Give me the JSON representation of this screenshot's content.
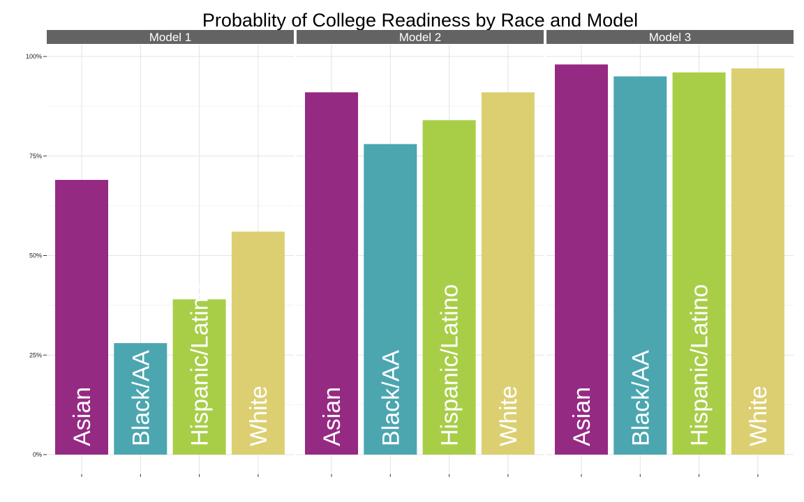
{
  "chart_data": {
    "type": "bar",
    "title": "Probablity of College Readiness by Race and Model",
    "xlabel": "",
    "ylabel": "",
    "ylim": [
      0,
      1
    ],
    "y_ticks": [
      0,
      0.25,
      0.5,
      0.75,
      1.0
    ],
    "y_tick_labels": [
      "0%",
      "25%",
      "50%",
      "75%",
      "100%"
    ],
    "grid": true,
    "facets": [
      {
        "name": "Model 1",
        "categories": [
          "Asian",
          "Black/AA",
          "Hispanic/Latino",
          "White"
        ],
        "values": [
          0.69,
          0.28,
          0.39,
          0.56
        ]
      },
      {
        "name": "Model 2",
        "categories": [
          "Asian",
          "Black/AA",
          "Hispanic/Latino",
          "White"
        ],
        "values": [
          0.91,
          0.78,
          0.84,
          0.91
        ]
      },
      {
        "name": "Model 3",
        "categories": [
          "Asian",
          "Black/AA",
          "Hispanic/Latino",
          "White"
        ],
        "values": [
          0.98,
          0.95,
          0.96,
          0.97
        ]
      }
    ],
    "colors": {
      "Asian": "#952a83",
      "Black/AA": "#4ba6b0",
      "Hispanic/Latino": "#a8ce48",
      "White": "#dbcf72",
      "strip": "#636363"
    }
  }
}
